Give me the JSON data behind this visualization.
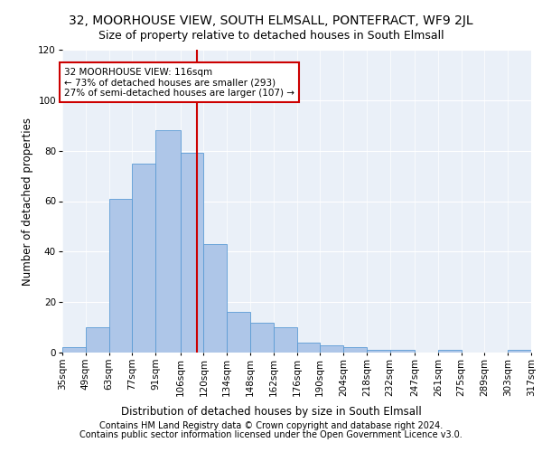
{
  "title1": "32, MOORHOUSE VIEW, SOUTH ELMSALL, PONTEFRACT, WF9 2JL",
  "title2": "Size of property relative to detached houses in South Elmsall",
  "xlabel": "Distribution of detached houses by size in South Elmsall",
  "ylabel": "Number of detached properties",
  "footer1": "Contains HM Land Registry data © Crown copyright and database right 2024.",
  "footer2": "Contains public sector information licensed under the Open Government Licence v3.0.",
  "bin_edges": [
    35,
    49,
    63,
    77,
    91,
    106,
    120,
    134,
    148,
    162,
    176,
    190,
    204,
    218,
    232,
    247,
    261,
    275,
    289,
    303,
    317
  ],
  "bar_heights": [
    2,
    10,
    61,
    75,
    88,
    79,
    43,
    16,
    12,
    10,
    4,
    3,
    2,
    1,
    1,
    0,
    1,
    0,
    0,
    1
  ],
  "bar_color": "#aec6e8",
  "bar_edge_color": "#5b9bd5",
  "vline_x": 116,
  "vline_color": "#cc0000",
  "annotation_text": "32 MOORHOUSE VIEW: 116sqm\n← 73% of detached houses are smaller (293)\n27% of semi-detached houses are larger (107) →",
  "annotation_box_color": "#ffffff",
  "annotation_box_edge": "#cc0000",
  "bg_color": "#eaf0f8",
  "ylim": [
    0,
    120
  ],
  "yticks": [
    0,
    20,
    40,
    60,
    80,
    100,
    120
  ],
  "title1_fontsize": 10,
  "title2_fontsize": 9,
  "xlabel_fontsize": 8.5,
  "ylabel_fontsize": 8.5,
  "tick_fontsize": 7.5,
  "annot_fontsize": 7.5,
  "footer_fontsize": 7
}
